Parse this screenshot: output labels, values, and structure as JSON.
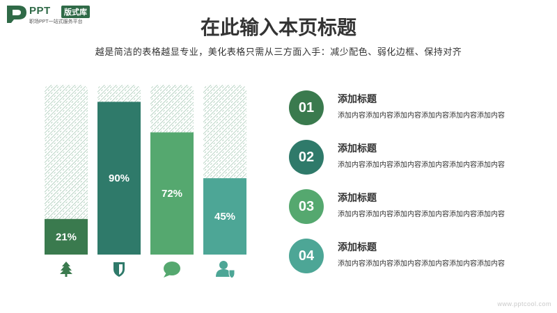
{
  "logo": {
    "text": "PPT",
    "badge": "版式库",
    "sub": "职场PPT一站式服务平台"
  },
  "title": "在此输入本页标题",
  "subtitle": "越是简洁的表格越显专业，美化表格只需从三方面入手：减少配色、弱化边框、保持对齐",
  "chart_data": {
    "type": "bar",
    "categories": [
      "tree",
      "shield",
      "chat",
      "user"
    ],
    "values": [
      21,
      90,
      72,
      45
    ],
    "labels": [
      "21%",
      "90%",
      "72%",
      "45%"
    ],
    "ylim": [
      0,
      100
    ],
    "colors": [
      "#3a7a4e",
      "#2f7a6a",
      "#55a86f",
      "#4da696"
    ],
    "grid": false
  },
  "items": [
    {
      "num": "01",
      "title": "添加标题",
      "desc": "添加内容添加内容添加内容添加内容添加内容添加内容",
      "color": "#3a7a4e"
    },
    {
      "num": "02",
      "title": "添加标题",
      "desc": "添加内容添加内容添加内容添加内容添加内容添加内容",
      "color": "#2f7a6a"
    },
    {
      "num": "03",
      "title": "添加标题",
      "desc": "添加内容添加内容添加内容添加内容添加内容添加内容",
      "color": "#55a86f"
    },
    {
      "num": "04",
      "title": "添加标题",
      "desc": "添加内容添加内容添加内容添加内容添加内容添加内容",
      "color": "#4da696"
    }
  ],
  "icons": [
    "tree-icon",
    "shield-icon",
    "chat-bubble-icon",
    "user-shield-icon"
  ],
  "watermark": "www.pptcool.com"
}
